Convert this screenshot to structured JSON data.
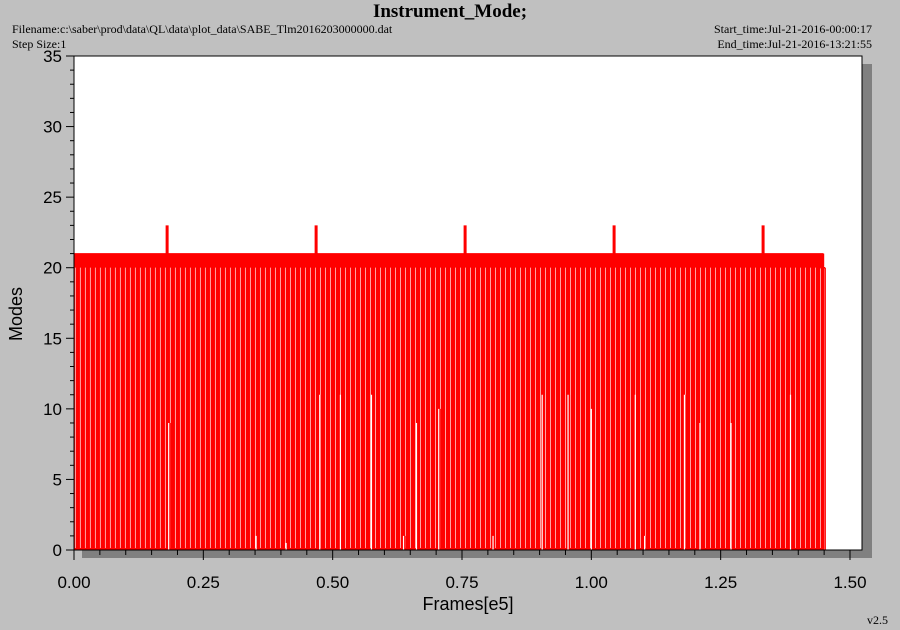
{
  "header": {
    "title": "Instrument_Mode;",
    "filename": "Filename:c:\\saber\\prod\\data\\QL\\data\\plot_data\\SABE_Tlm2016203000000.dat",
    "step_size": "Step Size:1",
    "start_time": "Start_time:Jul-21-2016-00:00:17",
    "end_time": "End_time:Jul-21-2016-13:21:55"
  },
  "version": "v2.5",
  "colors": {
    "background": "#c0c0c0",
    "plot_area": "#ffffff",
    "series": "#ff0000",
    "shadow": "#808080"
  },
  "chart_data": {
    "type": "line",
    "title": "",
    "xlabel": "Frames[e5]",
    "ylabel": "Modes",
    "xlim": [
      0,
      1.5
    ],
    "ylim": [
      0,
      35
    ],
    "x_ticks": [
      0,
      0.25,
      0.5,
      0.75,
      1.0,
      1.25,
      1.5
    ],
    "x_tick_labels": [
      "0.00",
      "0.25",
      "0.50",
      "0.75",
      "1.00",
      "1.25",
      "1.50"
    ],
    "y_ticks": [
      0,
      5,
      10,
      15,
      20,
      25,
      30,
      35
    ],
    "y_tick_labels": [
      "0",
      "5",
      "10",
      "15",
      "20",
      "25",
      "30",
      "35"
    ],
    "grid": false,
    "series": [
      {
        "name": "",
        "description_levels": {
          "baseline": 21,
          "drop_to": 0,
          "peak": 23,
          "end_value": 20
        },
        "x_start": 0.0,
        "x_end": 1.45,
        "peaks_x": [
          0.18,
          0.468,
          0.756,
          1.044,
          1.332
        ],
        "intermediate_drops": [
          {
            "x": 0.183,
            "y": 9
          },
          {
            "x": 0.352,
            "y": 1
          },
          {
            "x": 0.41,
            "y": 0.5
          },
          {
            "x": 0.475,
            "y": 11
          },
          {
            "x": 0.515,
            "y": 11
          },
          {
            "x": 0.575,
            "y": 11
          },
          {
            "x": 0.637,
            "y": 1
          },
          {
            "x": 0.662,
            "y": 9
          },
          {
            "x": 0.705,
            "y": 10
          },
          {
            "x": 0.81,
            "y": 1
          },
          {
            "x": 0.905,
            "y": 11
          },
          {
            "x": 0.955,
            "y": 11
          },
          {
            "x": 1.0,
            "y": 10
          },
          {
            "x": 1.085,
            "y": 11
          },
          {
            "x": 1.103,
            "y": 1
          },
          {
            "x": 1.18,
            "y": 11
          },
          {
            "x": 1.21,
            "y": 9
          },
          {
            "x": 1.27,
            "y": 9
          },
          {
            "x": 1.385,
            "y": 11
          }
        ],
        "sample_count": 1450
      }
    ]
  }
}
